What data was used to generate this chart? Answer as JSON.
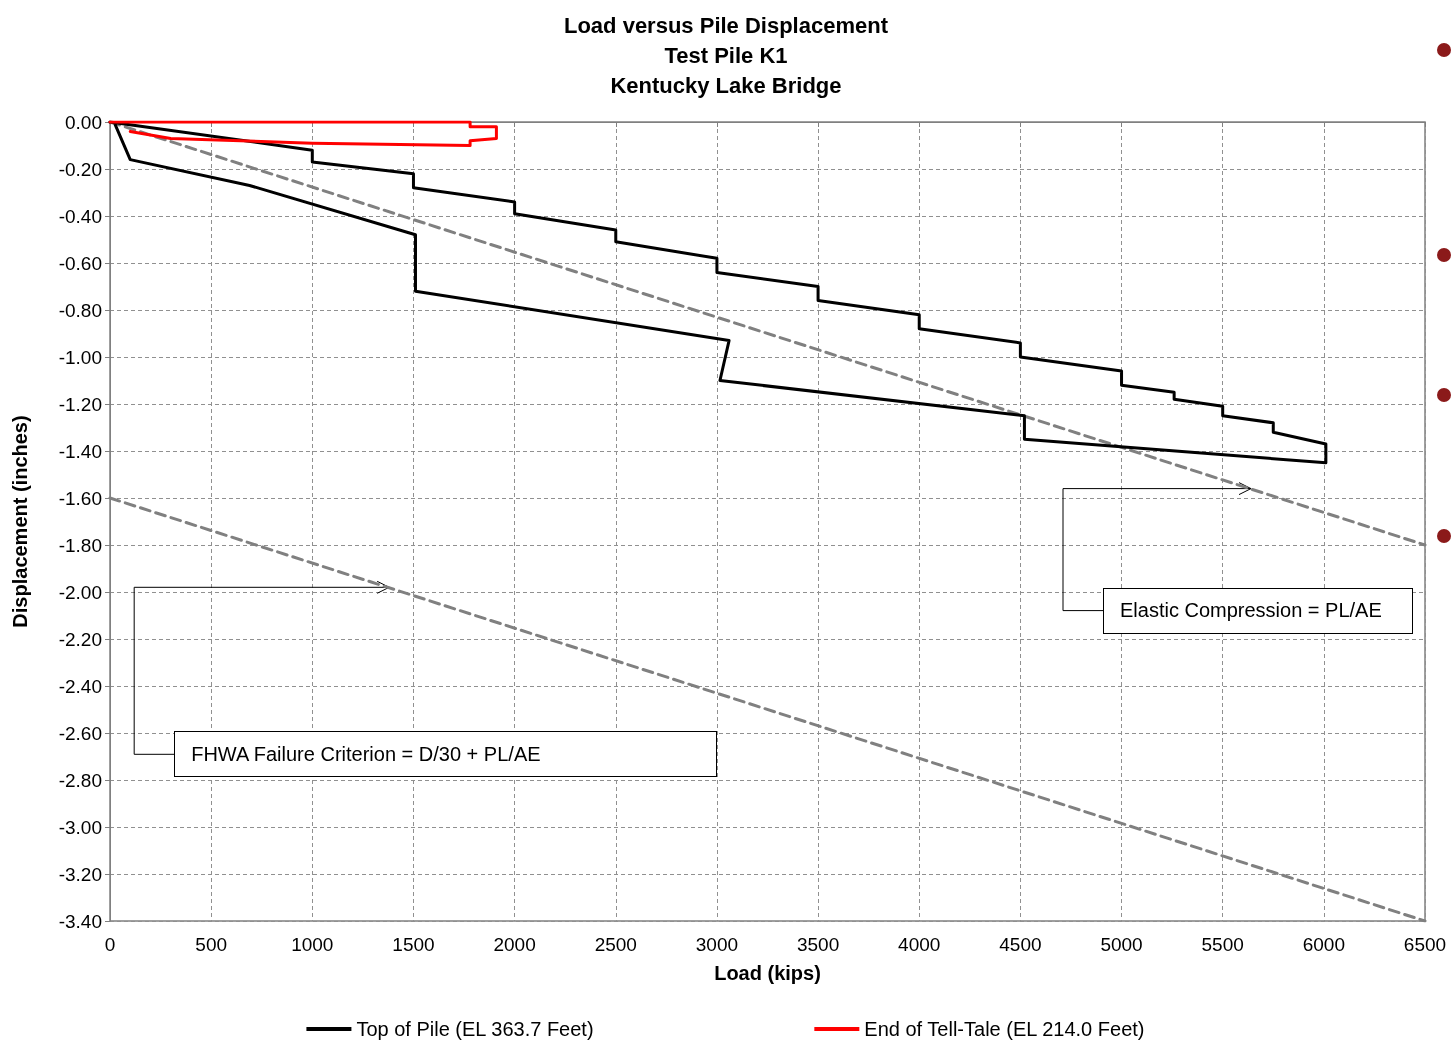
{
  "chart_data": {
    "type": "line",
    "title": "Load versus Pile Displacement\nTest Pile K1\nKentucky Lake Bridge",
    "xlabel": "Load (kips)",
    "ylabel": "Displacement (inches)",
    "xlim": [
      0,
      6500
    ],
    "xticks": [
      0,
      500,
      1000,
      1500,
      2000,
      2500,
      3000,
      3500,
      4000,
      4500,
      5000,
      5500,
      6000,
      6500
    ],
    "ylim": [
      -3.4,
      0
    ],
    "yticks": [
      {
        "value": 0,
        "label": "0.00"
      },
      {
        "value": -0.2,
        "label": "-0.20"
      },
      {
        "value": -0.4,
        "label": "-0.40"
      },
      {
        "value": -0.6,
        "label": "-0.60"
      },
      {
        "value": -0.8,
        "label": "-0.80"
      },
      {
        "value": -1.0,
        "label": "-1.00"
      },
      {
        "value": -1.2,
        "label": "-1.20"
      },
      {
        "value": -1.4,
        "label": "-1.40"
      },
      {
        "value": -1.6,
        "label": "-1.60"
      },
      {
        "value": -1.8,
        "label": "-1.80"
      },
      {
        "value": -2.0,
        "label": "-2.00"
      },
      {
        "value": -2.2,
        "label": "-2.20"
      },
      {
        "value": -2.4,
        "label": "-2.40"
      },
      {
        "value": -2.6,
        "label": "-2.60"
      },
      {
        "value": -2.8,
        "label": "-2.80"
      },
      {
        "value": -3.0,
        "label": "-3.00"
      },
      {
        "value": -3.2,
        "label": "-3.20"
      },
      {
        "value": -3.4,
        "label": "-3.40"
      }
    ],
    "grid": true,
    "legend": "bottom",
    "marker": "none",
    "series": [
      {
        "name": "Top of Pile (EL 363.7 Feet)",
        "color": "#000000",
        "line_style": "solid",
        "x": [
          0,
          1000,
          1000,
          1500,
          1500,
          2000,
          2000,
          2500,
          2500,
          3000,
          3000,
          3500,
          3500,
          4000,
          4000,
          4500,
          4500,
          5000,
          5000,
          5260,
          5260,
          5500,
          5500,
          5750,
          5750,
          6010,
          6010,
          4520,
          4520,
          3015,
          3060,
          1510,
          1510,
          690,
          100,
          25
        ],
        "values": [
          0,
          -0.12,
          -0.17,
          -0.22,
          -0.28,
          -0.34,
          -0.39,
          -0.46,
          -0.51,
          -0.58,
          -0.64,
          -0.7,
          -0.76,
          -0.82,
          -0.88,
          -0.94,
          -1.0,
          -1.06,
          -1.12,
          -1.15,
          -1.18,
          -1.21,
          -1.25,
          -1.28,
          -1.32,
          -1.37,
          -1.45,
          -1.35,
          -1.25,
          -1.1,
          -0.93,
          -0.72,
          -0.48,
          -0.27,
          -0.16,
          -0.01
        ]
      },
      {
        "name": "End of Tell-Tale (EL 214.0 Feet)",
        "color": "#ff0000",
        "line_style": "solid",
        "x": [
          0,
          1780,
          1780,
          1910,
          1910,
          1780,
          1780,
          1000,
          300,
          100
        ],
        "values": [
          0,
          0,
          -0.02,
          -0.02,
          -0.07,
          -0.08,
          -0.1,
          -0.09,
          -0.07,
          -0.04
        ]
      },
      {
        "color": "#808080",
        "line_style": "dashed",
        "x": [
          0,
          6500
        ],
        "values": [
          0,
          -1.8
        ]
      },
      {
        "color": "#808080",
        "line_style": "dashed",
        "x": [
          0,
          6500
        ],
        "values": [
          -1.6,
          -3.4
        ]
      }
    ],
    "annotations": [
      {
        "text": "Elastic Compression = PL/AE",
        "x": 5640,
        "y": -1.56
      },
      {
        "text": "FHWA Failure Criterion = D/30 + PL/AE",
        "x": 1380,
        "y": -1.98
      }
    ]
  }
}
